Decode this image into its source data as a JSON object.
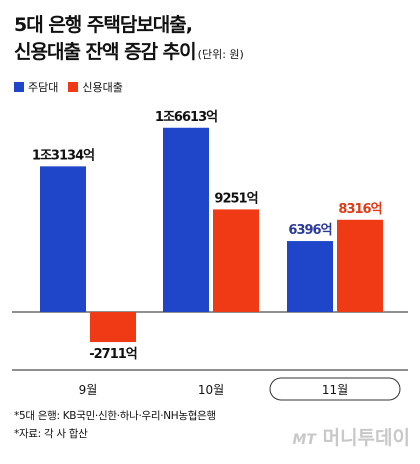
{
  "title": {
    "line1": "5대 은행 주택담보대출,",
    "line2": "신용대출 잔액 증감 추이",
    "unit": "(단위: 원)"
  },
  "legend": [
    {
      "label": "주담대",
      "color": "#1f46c8"
    },
    {
      "label": "신용대출",
      "color": "#f03a16"
    }
  ],
  "chart_data": {
    "type": "bar",
    "categories": [
      "9월",
      "10월",
      "11월"
    ],
    "series": [
      {
        "name": "주담대",
        "color": "#1f46c8",
        "values": [
          13134,
          16613,
          6396
        ],
        "labels": [
          "1조3134억",
          "1조6613억",
          "6396억"
        ]
      },
      {
        "name": "신용대출",
        "color": "#f03a16",
        "values": [
          -2711,
          9251,
          8316
        ],
        "labels": [
          "-2711억",
          "9251억",
          "8316억"
        ]
      }
    ],
    "unit": "억원",
    "highlighted_category": "11월"
  },
  "notes": [
    "*5대 은행: KB국민·신한·하나·우리·NH농협은행",
    "*자료: 각 사 합산"
  ],
  "watermark": {
    "logo": "MT",
    "text": "머니투데이"
  }
}
